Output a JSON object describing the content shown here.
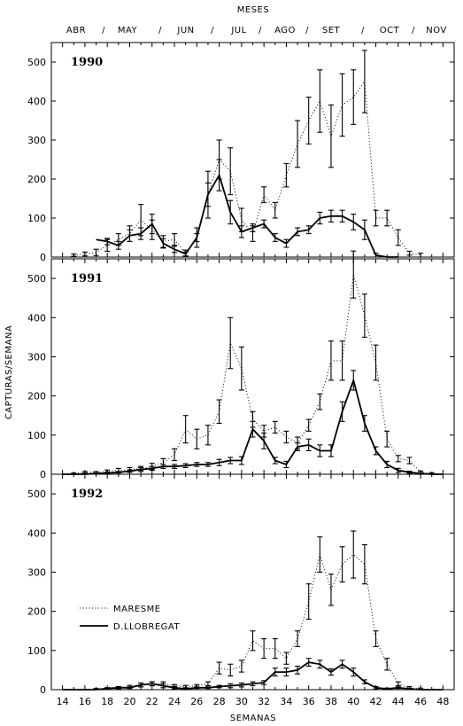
{
  "chart_data": {
    "type": "line",
    "top_axis": {
      "title": "MESES",
      "months": [
        "ABR",
        "MAY",
        "JUN",
        "JUL",
        "AGO",
        "SET",
        "OCT",
        "NOV"
      ],
      "separator": "/"
    },
    "xlabel": "SEMANAS",
    "ylabel": "CAPTURAS/SEMANA",
    "xlim": [
      13,
      49
    ],
    "xticks": [
      14,
      16,
      18,
      20,
      22,
      24,
      26,
      28,
      30,
      32,
      34,
      36,
      38,
      40,
      42,
      44,
      46,
      48
    ],
    "ylim": [
      0,
      550
    ],
    "yticks": [
      0,
      100,
      200,
      300,
      400,
      500
    ],
    "legend": {
      "position": "lower-left of bottom panel",
      "entries": [
        {
          "label": "MARESME",
          "style": "dotted"
        },
        {
          "label": "D.LLOBREGAT",
          "style": "solid"
        }
      ]
    },
    "panels": [
      {
        "year": "1990",
        "series": [
          {
            "name": "MARESME",
            "style": "dotted",
            "x": [
              15,
              16,
              17,
              18,
              19,
              20,
              21,
              22,
              23,
              24,
              25,
              26,
              27,
              28,
              29,
              30,
              31,
              32,
              33,
              34,
              35,
              36,
              37,
              38,
              39,
              40,
              41,
              42,
              43,
              44,
              45,
              46
            ],
            "y": [
              5,
              8,
              12,
              30,
              45,
              60,
              95,
              70,
              40,
              45,
              10,
              50,
              160,
              250,
              220,
              95,
              60,
              160,
              120,
              210,
              290,
              350,
              400,
              310,
              390,
              410,
              450,
              100,
              100,
              50,
              10,
              5
            ],
            "err": [
              3,
              5,
              8,
              15,
              15,
              20,
              40,
              25,
              15,
              15,
              8,
              25,
              60,
              50,
              60,
              30,
              20,
              20,
              20,
              30,
              60,
              60,
              80,
              80,
              80,
              70,
              80,
              20,
              20,
              20,
              5,
              5
            ]
          },
          {
            "name": "D.LLOBREGAT",
            "style": "solid",
            "x": [
              17,
              18,
              19,
              20,
              21,
              22,
              23,
              24,
              25,
              26,
              27,
              28,
              29,
              30,
              31,
              32,
              33,
              34,
              35,
              36,
              37,
              38,
              39,
              40,
              41,
              42,
              43,
              44
            ],
            "y": [
              45,
              40,
              30,
              55,
              60,
              85,
              35,
              20,
              8,
              50,
              160,
              210,
              115,
              65,
              75,
              85,
              50,
              35,
              65,
              70,
              100,
              105,
              105,
              90,
              70,
              5,
              0,
              0
            ],
            "err": [
              0,
              8,
              10,
              15,
              15,
              25,
              12,
              8,
              5,
              10,
              30,
              40,
              30,
              15,
              10,
              10,
              10,
              10,
              10,
              10,
              15,
              15,
              15,
              20,
              25,
              5,
              0,
              0
            ]
          }
        ]
      },
      {
        "year": "1991",
        "series": [
          {
            "name": "MARESME",
            "style": "dotted",
            "x": [
              14,
              15,
              16,
              17,
              18,
              19,
              20,
              21,
              22,
              23,
              24,
              25,
              26,
              27,
              28,
              29,
              30,
              31,
              32,
              33,
              34,
              35,
              36,
              37,
              38,
              39,
              40,
              41,
              42,
              43,
              44,
              45,
              46,
              47,
              48
            ],
            "y": [
              0,
              2,
              5,
              5,
              8,
              10,
              12,
              15,
              20,
              30,
              50,
              115,
              90,
              100,
              160,
              335,
              270,
              140,
              110,
              120,
              95,
              80,
              125,
              185,
              290,
              290,
              510,
              405,
              285,
              90,
              40,
              35,
              5,
              2,
              0
            ],
            "err": [
              0,
              1,
              2,
              2,
              3,
              5,
              5,
              5,
              8,
              10,
              15,
              35,
              25,
              25,
              30,
              65,
              55,
              20,
              15,
              15,
              15,
              15,
              15,
              20,
              50,
              50,
              60,
              55,
              45,
              20,
              8,
              8,
              3,
              2,
              0
            ]
          },
          {
            "name": "D.LLOBREGAT",
            "style": "solid",
            "x": [
              14,
              15,
              16,
              17,
              18,
              19,
              20,
              21,
              22,
              23,
              24,
              25,
              26,
              27,
              28,
              29,
              30,
              31,
              32,
              33,
              34,
              35,
              36,
              37,
              38,
              39,
              40,
              41,
              42,
              43,
              44,
              45,
              46,
              47,
              48
            ],
            "y": [
              0,
              0,
              0,
              2,
              3,
              5,
              8,
              12,
              15,
              20,
              20,
              22,
              25,
              25,
              30,
              35,
              35,
              115,
              85,
              35,
              25,
              70,
              75,
              60,
              60,
              160,
              240,
              130,
              60,
              25,
              10,
              5,
              2,
              0,
              0
            ],
            "err": [
              0,
              0,
              0,
              1,
              2,
              2,
              3,
              5,
              5,
              5,
              5,
              5,
              5,
              5,
              8,
              8,
              10,
              20,
              20,
              8,
              8,
              10,
              15,
              15,
              15,
              25,
              25,
              20,
              10,
              8,
              5,
              3,
              2,
              0,
              0
            ]
          }
        ]
      },
      {
        "year": "1992",
        "series": [
          {
            "name": "MARESME",
            "style": "dotted",
            "x": [
              14,
              15,
              16,
              17,
              18,
              19,
              20,
              21,
              22,
              23,
              24,
              25,
              26,
              27,
              28,
              29,
              30,
              31,
              32,
              33,
              34,
              35,
              36,
              37,
              38,
              39,
              40,
              41,
              42,
              43,
              44,
              45,
              46,
              47,
              48
            ],
            "y": [
              0,
              0,
              0,
              2,
              3,
              5,
              8,
              12,
              15,
              15,
              10,
              8,
              10,
              15,
              55,
              50,
              60,
              125,
              105,
              105,
              80,
              130,
              225,
              345,
              255,
              320,
              345,
              320,
              130,
              65,
              15,
              5,
              2,
              0,
              0
            ],
            "err": [
              0,
              0,
              0,
              1,
              2,
              3,
              3,
              5,
              5,
              5,
              3,
              3,
              3,
              5,
              15,
              15,
              15,
              25,
              25,
              25,
              15,
              20,
              45,
              45,
              40,
              45,
              60,
              50,
              20,
              15,
              5,
              3,
              2,
              0,
              0
            ]
          },
          {
            "name": "D.LLOBREGAT",
            "style": "solid",
            "x": [
              14,
              15,
              16,
              17,
              18,
              19,
              20,
              21,
              22,
              23,
              24,
              25,
              26,
              27,
              28,
              29,
              30,
              31,
              32,
              33,
              34,
              35,
              36,
              37,
              38,
              39,
              40,
              41,
              42,
              43,
              44,
              45,
              46,
              47,
              48
            ],
            "y": [
              0,
              0,
              0,
              0,
              3,
              5,
              5,
              12,
              15,
              10,
              5,
              2,
              5,
              5,
              8,
              10,
              12,
              15,
              18,
              45,
              45,
              50,
              70,
              65,
              45,
              65,
              45,
              20,
              5,
              2,
              5,
              2,
              0,
              0,
              0
            ],
            "err": [
              0,
              0,
              0,
              0,
              2,
              2,
              2,
              5,
              5,
              5,
              3,
              2,
              2,
              2,
              3,
              5,
              5,
              5,
              5,
              10,
              10,
              10,
              10,
              10,
              8,
              10,
              10,
              5,
              3,
              2,
              2,
              2,
              0,
              0,
              0
            ]
          }
        ]
      }
    ]
  }
}
